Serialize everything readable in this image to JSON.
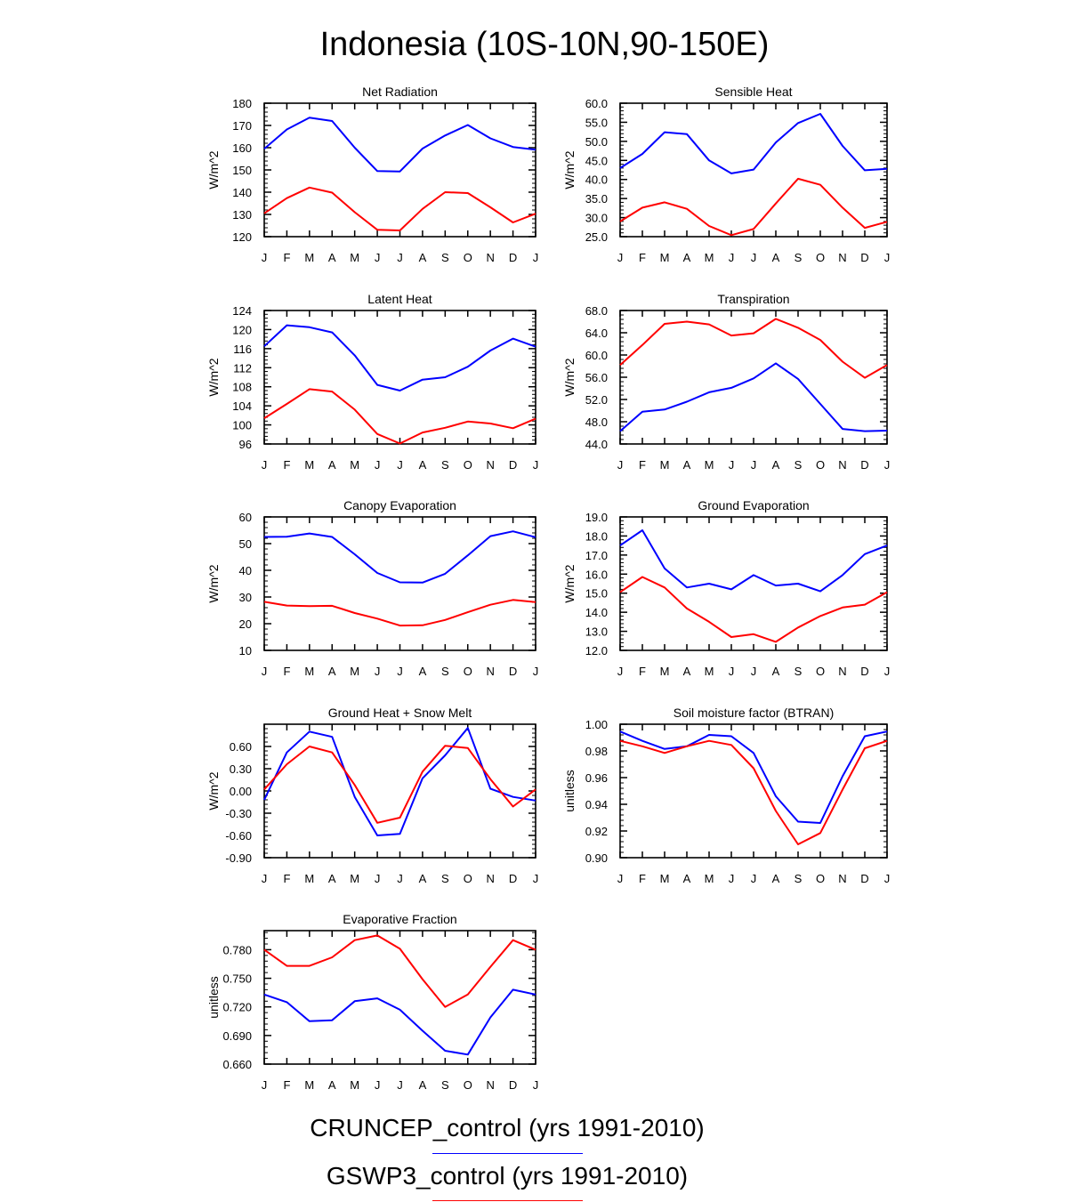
{
  "title": "Indonesia (10S-10N,90-150E)",
  "colors": {
    "series_a": "#0000ff",
    "series_b": "#ff0000",
    "axis": "#000000"
  },
  "legend": [
    {
      "label": "CRUNCEP_control (yrs 1991-2010)",
      "color": "#0000ff"
    },
    {
      "label": "GSWP3_control (yrs 1991-2010)",
      "color": "#ff0000"
    }
  ],
  "chart_data": [
    {
      "type": "line",
      "title": "Net Radiation",
      "ylabel": "W/m^2",
      "categories": [
        "J",
        "F",
        "M",
        "A",
        "M",
        "J",
        "J",
        "A",
        "S",
        "O",
        "N",
        "D",
        "J"
      ],
      "ylim": [
        120,
        180
      ],
      "yticks": [
        "180",
        "170",
        "160",
        "150",
        "140",
        "130",
        "120"
      ],
      "ytick_values": [
        180,
        170,
        160,
        150,
        140,
        130,
        120
      ],
      "series": [
        {
          "name": "CRUNCEP_control (yrs 1991-2010)",
          "values": [
            159.5,
            168.2,
            173.5,
            172,
            160,
            149.5,
            149.3,
            159.6,
            165.5,
            170.2,
            164.2,
            160.3,
            159.1
          ]
        },
        {
          "name": "GSWP3_control (yrs 1991-2010)",
          "values": [
            130.5,
            137.3,
            142.1,
            139.8,
            131,
            123.1,
            122.8,
            132.5,
            140,
            139.6,
            133.2,
            126.4,
            130.3
          ]
        }
      ]
    },
    {
      "type": "line",
      "title": "Sensible Heat",
      "ylabel": "W/m^2",
      "categories": [
        "J",
        "F",
        "M",
        "A",
        "M",
        "J",
        "J",
        "A",
        "S",
        "O",
        "N",
        "D",
        "J"
      ],
      "ylim": [
        25,
        60
      ],
      "yticks": [
        "60.0",
        "55.0",
        "50.0",
        "45.0",
        "40.0",
        "35.0",
        "30.0",
        "25.0"
      ],
      "ytick_values": [
        60,
        55,
        50,
        45,
        40,
        35,
        30,
        25
      ],
      "series": [
        {
          "name": "CRUNCEP_control (yrs 1991-2010)",
          "values": [
            43,
            46.7,
            52.4,
            51.9,
            45,
            41.6,
            42.6,
            49.7,
            54.8,
            57.2,
            48.8,
            42.4,
            42.8
          ]
        },
        {
          "name": "GSWP3_control (yrs 1991-2010)",
          "values": [
            29,
            32.6,
            34,
            32.3,
            27.8,
            25.4,
            27,
            33.7,
            40.2,
            38.6,
            32.6,
            27.3,
            28.9
          ]
        }
      ]
    },
    {
      "type": "line",
      "title": "Latent Heat",
      "ylabel": "W/m^2",
      "categories": [
        "J",
        "F",
        "M",
        "A",
        "M",
        "J",
        "J",
        "A",
        "S",
        "O",
        "N",
        "D",
        "J"
      ],
      "ylim": [
        96,
        124
      ],
      "yticks": [
        "124",
        "120",
        "116",
        "112",
        "108",
        "104",
        "100",
        "96"
      ],
      "ytick_values": [
        124,
        120,
        116,
        112,
        108,
        104,
        100,
        96
      ],
      "series": [
        {
          "name": "CRUNCEP_control (yrs 1991-2010)",
          "values": [
            116.5,
            120.9,
            120.5,
            119.4,
            114.6,
            108.4,
            107.2,
            109.5,
            110,
            112.2,
            115.6,
            118.1,
            116.4
          ]
        },
        {
          "name": "GSWP3_control (yrs 1991-2010)",
          "values": [
            101.4,
            104.4,
            107.5,
            107,
            103.2,
            98.1,
            96.1,
            98.4,
            99.4,
            100.7,
            100.3,
            99.3,
            101.3
          ]
        }
      ]
    },
    {
      "type": "line",
      "title": "Transpiration",
      "ylabel": "W/m^2",
      "categories": [
        "J",
        "F",
        "M",
        "A",
        "M",
        "J",
        "J",
        "A",
        "S",
        "O",
        "N",
        "D",
        "J"
      ],
      "ylim": [
        44,
        68
      ],
      "yticks": [
        "68.0",
        "64.0",
        "60.0",
        "56.0",
        "52.0",
        "48.0",
        "44.0"
      ],
      "ytick_values": [
        68,
        64,
        60,
        56,
        52,
        48,
        44
      ],
      "series": [
        {
          "name": "CRUNCEP_control (yrs 1991-2010)",
          "values": [
            46.3,
            49.8,
            50.2,
            51.6,
            53.3,
            54.1,
            55.8,
            58.5,
            55.7,
            51.2,
            46.7,
            46.3,
            46.4
          ]
        },
        {
          "name": "GSWP3_control (yrs 1991-2010)",
          "values": [
            58.2,
            61.8,
            65.6,
            66,
            65.5,
            63.5,
            63.9,
            66.5,
            64.9,
            62.7,
            58.8,
            55.9,
            58.2
          ]
        }
      ]
    },
    {
      "type": "line",
      "title": "Canopy Evaporation",
      "ylabel": "W/m^2",
      "categories": [
        "J",
        "F",
        "M",
        "A",
        "M",
        "J",
        "J",
        "A",
        "S",
        "O",
        "N",
        "D",
        "J"
      ],
      "ylim": [
        10,
        60
      ],
      "yticks": [
        "60",
        "50",
        "40",
        "30",
        "20",
        "10"
      ],
      "ytick_values": [
        60,
        50,
        40,
        30,
        20,
        10
      ],
      "series": [
        {
          "name": "CRUNCEP_control (yrs 1991-2010)",
          "values": [
            52.5,
            52.6,
            53.8,
            52.5,
            46,
            39,
            35.5,
            35.4,
            38.7,
            45.6,
            52.8,
            54.6,
            52.4
          ]
        },
        {
          "name": "GSWP3_control (yrs 1991-2010)",
          "values": [
            28.2,
            26.8,
            26.6,
            26.7,
            24,
            21.9,
            19.3,
            19.4,
            21.4,
            24.3,
            27.1,
            28.9,
            28.1
          ]
        }
      ]
    },
    {
      "type": "line",
      "title": "Ground Evaporation",
      "ylabel": "W/m^2",
      "categories": [
        "J",
        "F",
        "M",
        "A",
        "M",
        "J",
        "J",
        "A",
        "S",
        "O",
        "N",
        "D",
        "J"
      ],
      "ylim": [
        12,
        19
      ],
      "yticks": [
        "19.0",
        "18.0",
        "17.0",
        "16.0",
        "15.0",
        "14.0",
        "13.0",
        "12.0"
      ],
      "ytick_values": [
        19,
        18,
        17,
        16,
        15,
        14,
        13,
        12
      ],
      "series": [
        {
          "name": "CRUNCEP_control (yrs 1991-2010)",
          "values": [
            17.5,
            18.3,
            16.3,
            15.3,
            15.5,
            15.2,
            15.95,
            15.4,
            15.5,
            15.1,
            15.95,
            17.05,
            17.5
          ]
        },
        {
          "name": "GSWP3_control (yrs 1991-2010)",
          "values": [
            15.05,
            15.85,
            15.3,
            14.2,
            13.5,
            12.7,
            12.85,
            12.45,
            13.2,
            13.8,
            14.25,
            14.4,
            15.05
          ]
        }
      ]
    },
    {
      "type": "line",
      "title": "Ground Heat + Snow Melt",
      "ylabel": "W/m^2",
      "categories": [
        "J",
        "F",
        "M",
        "A",
        "M",
        "J",
        "J",
        "A",
        "S",
        "O",
        "N",
        "D",
        "J"
      ],
      "ylim": [
        -0.9,
        0.9
      ],
      "yticks": [
        "0.60",
        "0.30",
        "0.00",
        "-0.30",
        "-0.60",
        "-0.90"
      ],
      "ytick_values": [
        0.6,
        0.3,
        0,
        -0.3,
        -0.6,
        -0.9
      ],
      "series": [
        {
          "name": "CRUNCEP_control (yrs 1991-2010)",
          "values": [
            -0.12,
            0.52,
            0.8,
            0.73,
            -0.08,
            -0.6,
            -0.58,
            0.17,
            0.48,
            0.85,
            0.03,
            -0.08,
            -0.13
          ]
        },
        {
          "name": "GSWP3_control (yrs 1991-2010)",
          "values": [
            0.02,
            0.36,
            0.6,
            0.52,
            0.08,
            -0.43,
            -0.36,
            0.26,
            0.61,
            0.58,
            0.16,
            -0.21,
            0.02
          ]
        }
      ]
    },
    {
      "type": "line",
      "title": "Soil moisture factor (BTRAN)",
      "ylabel": "unitless",
      "categories": [
        "J",
        "F",
        "M",
        "A",
        "M",
        "J",
        "J",
        "A",
        "S",
        "O",
        "N",
        "D",
        "J"
      ],
      "ylim": [
        0.9,
        1.0
      ],
      "yticks": [
        "1.00",
        "0.98",
        "0.96",
        "0.94",
        "0.92",
        "0.90"
      ],
      "ytick_values": [
        1.0,
        0.98,
        0.96,
        0.94,
        0.92,
        0.9
      ],
      "series": [
        {
          "name": "CRUNCEP_control (yrs 1991-2010)",
          "values": [
            0.9945,
            0.9875,
            0.9815,
            0.9835,
            0.992,
            0.991,
            0.9785,
            0.946,
            0.927,
            0.926,
            0.961,
            0.991,
            0.9945
          ]
        },
        {
          "name": "GSWP3_control (yrs 1991-2010)",
          "values": [
            0.9875,
            0.9835,
            0.9785,
            0.9835,
            0.9875,
            0.9845,
            0.967,
            0.935,
            0.91,
            0.9185,
            0.951,
            0.982,
            0.9875
          ]
        }
      ]
    },
    {
      "type": "line",
      "title": "Evaporative Fraction",
      "ylabel": "unitless",
      "categories": [
        "J",
        "F",
        "M",
        "A",
        "M",
        "J",
        "J",
        "A",
        "S",
        "O",
        "N",
        "D",
        "J"
      ],
      "ylim": [
        0.66,
        0.8
      ],
      "yticks": [
        "0.780",
        "0.750",
        "0.720",
        "0.690",
        "0.660"
      ],
      "ytick_values": [
        0.78,
        0.75,
        0.72,
        0.69,
        0.66
      ],
      "series": [
        {
          "name": "CRUNCEP_control (yrs 1991-2010)",
          "values": [
            0.733,
            0.725,
            0.705,
            0.706,
            0.726,
            0.729,
            0.717,
            0.695,
            0.674,
            0.67,
            0.709,
            0.738,
            0.733
          ]
        },
        {
          "name": "GSWP3_control (yrs 1991-2010)",
          "values": [
            0.78,
            0.763,
            0.763,
            0.772,
            0.79,
            0.795,
            0.781,
            0.749,
            0.72,
            0.733,
            0.762,
            0.79,
            0.78
          ]
        }
      ]
    }
  ]
}
